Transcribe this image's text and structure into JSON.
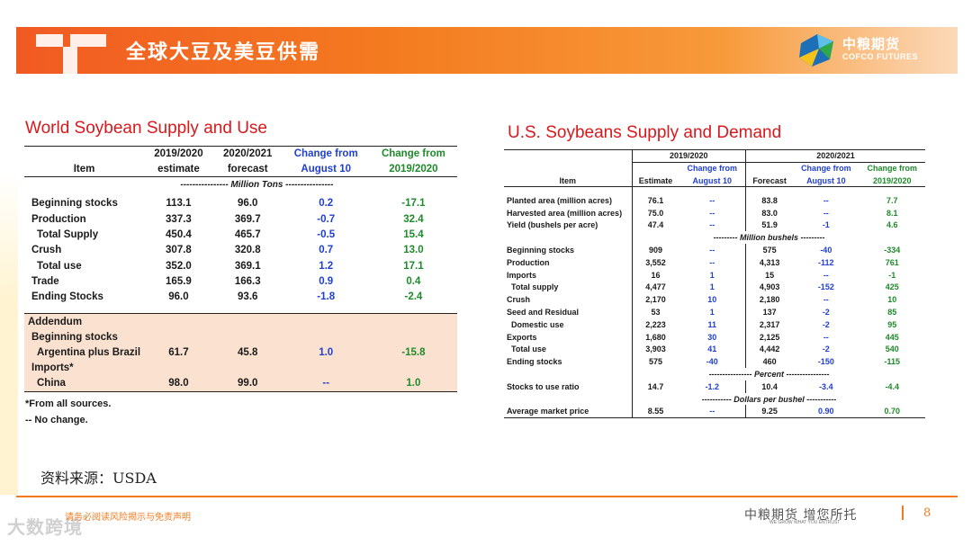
{
  "header": {
    "title": "全球大豆及美豆供需",
    "logo_cn": "中粮期货",
    "logo_en": "COFCO FUTURES"
  },
  "world": {
    "title": "World Soybean Supply and Use",
    "headers": {
      "item": "Item",
      "c1_top": "2019/2020",
      "c1_bot": "estimate",
      "c2_top": "2020/2021",
      "c2_bot": "forecast",
      "c3_top": "Change from",
      "c3_bot": "August 10",
      "c4_top": "Change from",
      "c4_bot": "2019/2020"
    },
    "unit": "---------------- Million Tons ----------------",
    "rows": [
      {
        "item": "Beginning stocks",
        "v1": "113.1",
        "v2": "96.0",
        "v3": "0.2",
        "v4": "-17.1"
      },
      {
        "item": "Production",
        "v1": "337.3",
        "v2": "369.7",
        "v3": "-0.7",
        "v4": "32.4"
      },
      {
        "item": "Total Supply",
        "v1": "450.4",
        "v2": "465.7",
        "v3": "-0.5",
        "v4": "15.4"
      },
      {
        "item": "Crush",
        "v1": "307.8",
        "v2": "320.8",
        "v3": "0.7",
        "v4": "13.0"
      },
      {
        "item": "Total use",
        "v1": "352.0",
        "v2": "369.1",
        "v3": "1.2",
        "v4": "17.1"
      },
      {
        "item": "Trade",
        "v1": "165.9",
        "v2": "166.3",
        "v3": "0.9",
        "v4": "0.4"
      },
      {
        "item": "Ending Stocks",
        "v1": "96.0",
        "v2": "93.6",
        "v3": "-1.8",
        "v4": "-2.4"
      }
    ],
    "addendum": {
      "label": "Addendum",
      "beginning": "Beginning stocks",
      "argentina": {
        "item": "Argentina plus Brazil",
        "v1": "61.7",
        "v2": "45.8",
        "v3": "1.0",
        "v4": "-15.8"
      },
      "imports": "Imports*",
      "china": {
        "item": "China",
        "v1": "98.0",
        "v2": "99.0",
        "v3": "--",
        "v4": "1.0"
      }
    },
    "note1": "*From all sources.",
    "note2": "-- No change."
  },
  "us": {
    "title": "U.S. Soybeans Supply and Demand",
    "headers": {
      "y1": "2019/2020",
      "y2": "2020/2021",
      "item": "Item",
      "estimate": "Estimate",
      "chg_top": "Change from",
      "chg_bot": "August 10",
      "forecast": "Forecast",
      "chg2_top": "Change from",
      "chg2_bot": "August 10",
      "chg3_top": "Change from",
      "chg3_bot": "2019/2020"
    },
    "group1": [
      {
        "item": "Planted area (million acres)",
        "e": "76.1",
        "c": "--",
        "f": "83.8",
        "c2": "--",
        "c3": "7.7"
      },
      {
        "item": "Harvested area (million acres)",
        "e": "75.0",
        "c": "--",
        "f": "83.0",
        "c2": "--",
        "c3": "8.1"
      },
      {
        "item": "Yield (bushels per acre)",
        "e": "47.4",
        "c": "--",
        "f": "51.9",
        "c2": "-1",
        "c3": "4.6"
      }
    ],
    "unit_bushels": "--------- Million bushels ---------",
    "group2": [
      {
        "item": "Beginning stocks",
        "e": "909",
        "c": "--",
        "f": "575",
        "c2": "-40",
        "c3": "-334",
        "ind": false
      },
      {
        "item": "Production",
        "e": "3,552",
        "c": "--",
        "f": "4,313",
        "c2": "-112",
        "c3": "761",
        "ind": false
      },
      {
        "item": "Imports",
        "e": "16",
        "c": "1",
        "f": "15",
        "c2": "--",
        "c3": "-1",
        "ind": false
      },
      {
        "item": "Total supply",
        "e": "4,477",
        "c": "1",
        "f": "4,903",
        "c2": "-152",
        "c3": "425",
        "ind": true
      },
      {
        "item": "Crush",
        "e": "2,170",
        "c": "10",
        "f": "2,180",
        "c2": "--",
        "c3": "10",
        "ind": false
      },
      {
        "item": "Seed and Residual",
        "e": "53",
        "c": "1",
        "f": "137",
        "c2": "-2",
        "c3": "85",
        "ind": false
      },
      {
        "item": "Domestic use",
        "e": "2,223",
        "c": "11",
        "f": "2,317",
        "c2": "-2",
        "c3": "95",
        "ind": true
      },
      {
        "item": "Exports",
        "e": "1,680",
        "c": "30",
        "f": "2,125",
        "c2": "--",
        "c3": "445",
        "ind": false
      },
      {
        "item": "Total use",
        "e": "3,903",
        "c": "41",
        "f": "4,442",
        "c2": "-2",
        "c3": "540",
        "ind": true
      },
      {
        "item": "Ending stocks",
        "e": "575",
        "c": "-40",
        "f": "460",
        "c2": "-150",
        "c3": "-115",
        "ind": false
      }
    ],
    "unit_percent": "---------------- Percent ----------------",
    "ratio": {
      "item": "Stocks to use ratio",
      "e": "14.7",
      "c": "-1.2",
      "f": "10.4",
      "c2": "-3.4",
      "c3": "-4.4"
    },
    "unit_dollars": "----------- Dollars per bushel -----------",
    "price": {
      "item": "Average market price",
      "e": "8.55",
      "c": "--",
      "f": "9.25",
      "c2": "0.90",
      "c3": "0.70"
    }
  },
  "source": "资料来源：USDA",
  "footer": {
    "disclaimer": "请务必阅读风险揭示与免责声明",
    "watermark": "大数跨境",
    "slogan": "中粮期货 增您所托",
    "slogan_en": "WE GROW WHAT YOU ENTRUST",
    "page": "8"
  },
  "colors": {
    "accent": "#f47b20",
    "title_red": "#d7191c",
    "blue": "#1f3fd1",
    "green": "#1e8a2a",
    "addendum_bg": "#fbe2d0"
  }
}
